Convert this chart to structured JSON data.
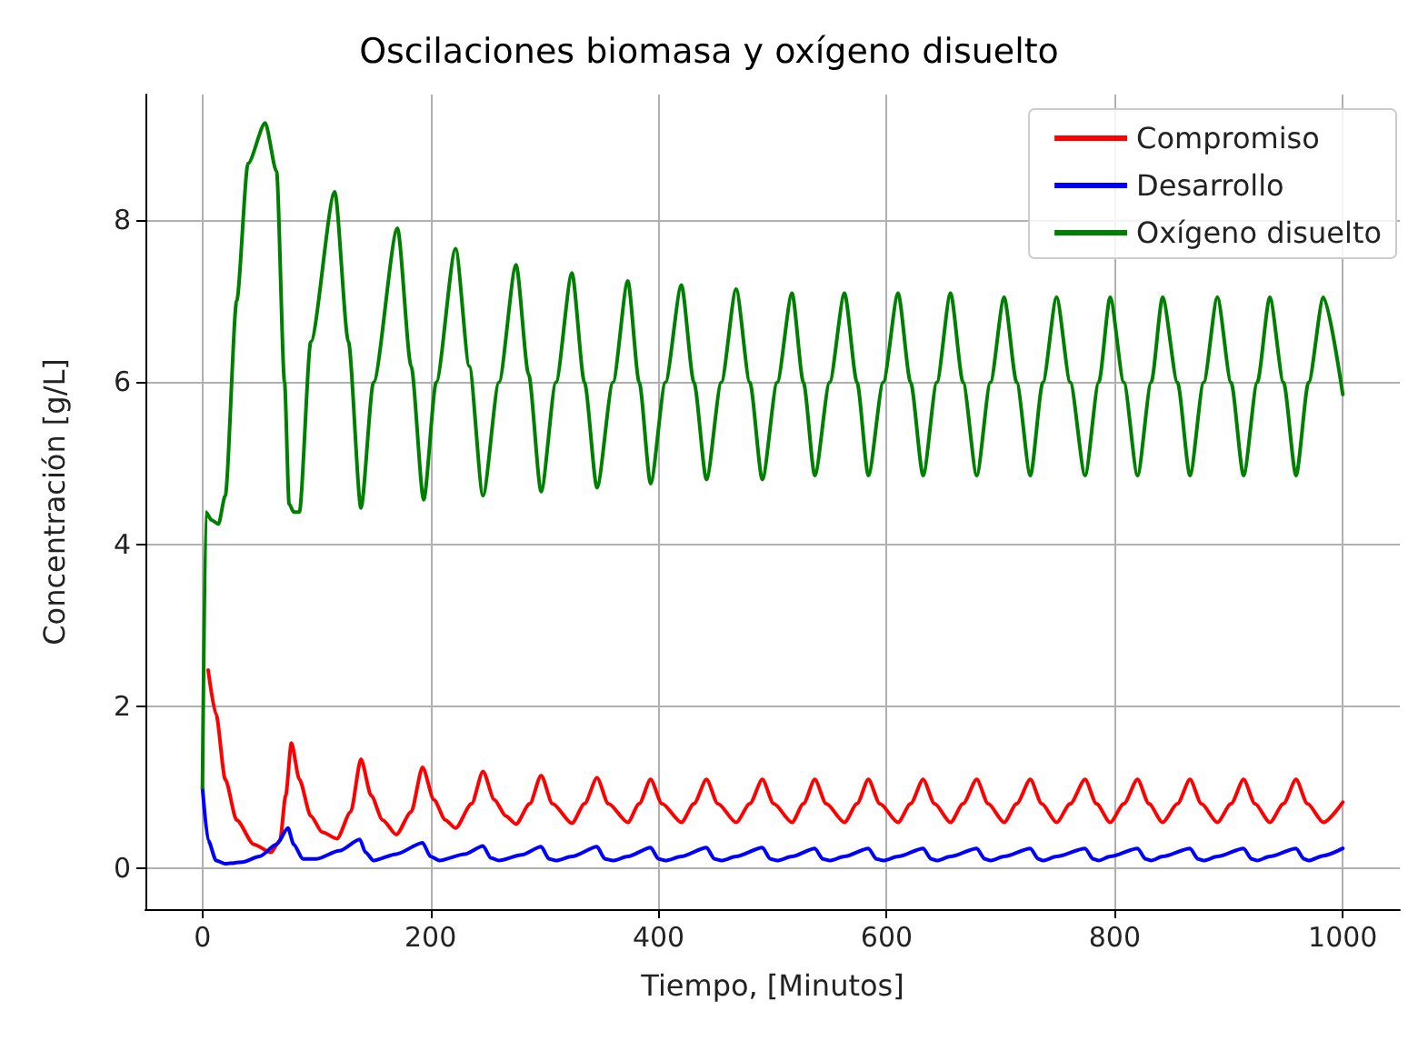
{
  "chart_data": {
    "type": "line",
    "title": "Oscilaciones biomasa y oxígeno disuelto",
    "xlabel": "Tiempo, [Minutos]",
    "ylabel": "Concentración [g/L]",
    "xlim": [
      -50,
      1050
    ],
    "ylim": [
      -0.5,
      9.55
    ],
    "xticks": [
      0,
      200,
      400,
      600,
      800,
      1000
    ],
    "yticks": [
      0,
      2,
      4,
      6,
      8
    ],
    "grid": true,
    "legend": "top right",
    "line_style": "solid",
    "marker": "none",
    "series": [
      {
        "name": "Compromiso",
        "color": "#ff0000",
        "x": [
          5,
          12,
          20,
          30,
          45,
          60,
          68,
          73,
          78,
          85,
          95,
          105,
          118,
          130,
          139,
          148,
          158,
          170,
          183,
          193,
          203,
          213,
          222,
          236,
          246,
          256,
          266,
          275,
          287,
          297,
          307,
          324,
          335,
          346,
          356,
          373,
          383,
          393,
          403,
          420,
          431,
          442,
          452,
          468,
          480,
          491,
          501,
          517,
          527,
          537,
          547,
          563,
          574,
          584,
          594,
          610,
          621,
          632,
          642,
          656,
          667,
          679,
          689,
          703,
          714,
          726,
          736,
          749,
          761,
          774,
          784,
          796,
          808,
          820,
          830,
          842,
          855,
          866,
          876,
          890,
          902,
          913,
          923,
          936,
          948,
          959,
          969,
          983,
          1000
        ],
        "values": [
          2.45,
          1.9,
          1.1,
          0.6,
          0.3,
          0.2,
          0.35,
          0.9,
          1.55,
          1.1,
          0.65,
          0.45,
          0.37,
          0.7,
          1.35,
          0.9,
          0.6,
          0.42,
          0.7,
          1.25,
          0.85,
          0.6,
          0.5,
          0.8,
          1.2,
          0.85,
          0.65,
          0.55,
          0.8,
          1.15,
          0.8,
          0.56,
          0.8,
          1.12,
          0.8,
          0.57,
          0.8,
          1.1,
          0.8,
          0.57,
          0.8,
          1.1,
          0.8,
          0.57,
          0.8,
          1.1,
          0.8,
          0.57,
          0.8,
          1.1,
          0.8,
          0.57,
          0.8,
          1.1,
          0.8,
          0.57,
          0.8,
          1.1,
          0.8,
          0.57,
          0.8,
          1.1,
          0.8,
          0.57,
          0.8,
          1.1,
          0.8,
          0.57,
          0.8,
          1.1,
          0.8,
          0.57,
          0.8,
          1.1,
          0.8,
          0.57,
          0.8,
          1.1,
          0.8,
          0.57,
          0.8,
          1.1,
          0.8,
          0.57,
          0.8,
          1.1,
          0.8,
          0.57,
          0.82
        ]
      },
      {
        "name": "Desarrollo",
        "color": "#0000ff",
        "x": [
          0,
          5,
          12,
          20,
          35,
          50,
          65,
          75,
          80,
          88,
          100,
          120,
          138,
          143,
          150,
          170,
          193,
          200,
          208,
          230,
          246,
          253,
          260,
          280,
          297,
          304,
          310,
          324,
          346,
          353,
          360,
          373,
          393,
          400,
          406,
          420,
          442,
          449,
          455,
          468,
          491,
          498,
          504,
          517,
          537,
          544,
          550,
          563,
          584,
          591,
          597,
          610,
          632,
          639,
          644,
          656,
          679,
          686,
          691,
          703,
          726,
          733,
          737,
          749,
          774,
          781,
          786,
          796,
          820,
          827,
          832,
          842,
          866,
          873,
          878,
          890,
          913,
          920,
          925,
          936,
          959,
          966,
          970,
          983,
          1000
        ],
        "values": [
          1.0,
          0.35,
          0.1,
          0.06,
          0.08,
          0.15,
          0.3,
          0.5,
          0.3,
          0.12,
          0.12,
          0.22,
          0.36,
          0.2,
          0.1,
          0.18,
          0.32,
          0.15,
          0.1,
          0.18,
          0.28,
          0.13,
          0.1,
          0.17,
          0.27,
          0.12,
          0.1,
          0.15,
          0.27,
          0.12,
          0.1,
          0.15,
          0.26,
          0.12,
          0.1,
          0.15,
          0.26,
          0.12,
          0.1,
          0.15,
          0.26,
          0.12,
          0.1,
          0.15,
          0.25,
          0.12,
          0.1,
          0.15,
          0.25,
          0.12,
          0.1,
          0.15,
          0.25,
          0.12,
          0.1,
          0.15,
          0.25,
          0.12,
          0.1,
          0.15,
          0.25,
          0.12,
          0.1,
          0.15,
          0.25,
          0.12,
          0.1,
          0.15,
          0.25,
          0.12,
          0.1,
          0.15,
          0.25,
          0.12,
          0.1,
          0.15,
          0.25,
          0.12,
          0.1,
          0.15,
          0.25,
          0.12,
          0.1,
          0.16,
          0.25
        ]
      },
      {
        "name": "Oxígeno disuelto",
        "color": "#008000",
        "x": [
          0,
          3,
          8,
          14,
          20,
          30,
          40,
          55,
          65,
          72,
          76,
          80,
          85,
          95,
          116,
          128,
          139,
          150,
          171,
          183,
          194,
          205,
          222,
          234,
          246,
          260,
          275,
          286,
          297,
          310,
          324,
          335,
          346,
          360,
          373,
          383,
          393,
          406,
          420,
          431,
          442,
          455,
          468,
          480,
          491,
          504,
          517,
          527,
          537,
          550,
          563,
          574,
          584,
          597,
          610,
          621,
          632,
          644,
          656,
          667,
          679,
          691,
          703,
          714,
          726,
          737,
          749,
          761,
          774,
          786,
          796,
          808,
          820,
          832,
          842,
          855,
          866,
          878,
          890,
          902,
          913,
          925,
          936,
          948,
          959,
          970,
          983,
          1000
        ],
        "values": [
          1.0,
          4.4,
          4.3,
          4.25,
          4.6,
          7.0,
          8.7,
          9.2,
          8.6,
          6.0,
          4.5,
          4.4,
          4.4,
          6.5,
          8.35,
          6.5,
          4.45,
          6.0,
          7.9,
          6.2,
          4.55,
          6.0,
          7.65,
          6.2,
          4.6,
          6.0,
          7.45,
          6.1,
          4.65,
          6.0,
          7.35,
          6.0,
          4.7,
          6.0,
          7.25,
          6.0,
          4.75,
          6.0,
          7.2,
          6.0,
          4.8,
          6.0,
          7.15,
          6.0,
          4.8,
          6.0,
          7.1,
          6.0,
          4.85,
          6.0,
          7.1,
          6.0,
          4.85,
          6.0,
          7.1,
          6.0,
          4.85,
          6.0,
          7.1,
          6.0,
          4.85,
          6.0,
          7.05,
          6.0,
          4.85,
          6.0,
          7.05,
          6.0,
          4.85,
          6.0,
          7.05,
          6.0,
          4.85,
          6.0,
          7.05,
          6.0,
          4.85,
          6.0,
          7.05,
          6.0,
          4.85,
          6.0,
          7.05,
          6.0,
          4.85,
          6.0,
          7.05,
          5.85
        ]
      }
    ]
  }
}
